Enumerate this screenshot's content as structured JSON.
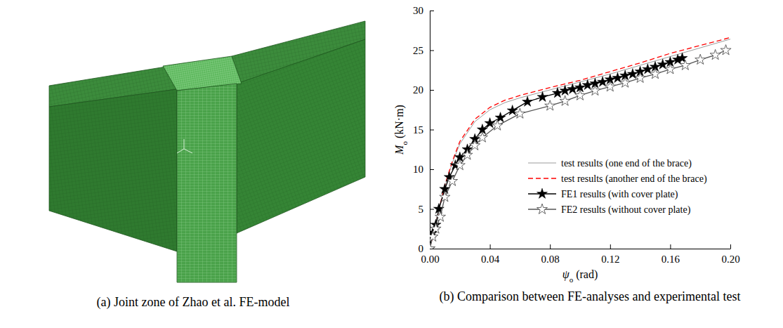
{
  "figure": {
    "panels": [
      {
        "caption": "(a) Joint zone of Zhao et al. FE-model"
      },
      {
        "caption": "(b) Comparison between FE-analyses and experimental test"
      }
    ]
  },
  "chart_data": {
    "type": "line",
    "xlabel": "ψ",
    "xlabel_subscript": "o",
    "xlabel_unit": "(rad)",
    "ylabel": "M",
    "ylabel_subscript": "o",
    "ylabel_unit": "(kN·m)",
    "xlim": [
      0,
      0.2
    ],
    "xticks": [
      {
        "value": 0,
        "label": "0.00"
      },
      {
        "value": 0.04,
        "label": "0.04"
      },
      {
        "value": 0.08,
        "label": "0.08"
      },
      {
        "value": 0.12,
        "label": "0.12"
      },
      {
        "value": 0.16,
        "label": "0.16"
      },
      {
        "value": 0.2,
        "label": "0.20"
      }
    ],
    "ylim": [
      0,
      30
    ],
    "yticks": [
      0,
      5,
      10,
      15,
      20,
      25,
      30
    ],
    "legend": "lower right",
    "series": [
      {
        "name": "test results (one end of the brace)",
        "color": "#9a9a9a",
        "line_style": "solid",
        "marker": "none",
        "x": [
          0,
          0.005,
          0.01,
          0.015,
          0.02,
          0.03,
          0.04,
          0.05,
          0.06,
          0.08,
          0.1,
          0.12,
          0.14,
          0.16,
          0.18,
          0.2
        ],
        "values": [
          0,
          3.9,
          7.8,
          10.8,
          13.2,
          16.0,
          17.5,
          18.4,
          19.0,
          20.0,
          21.0,
          22.0,
          23.1,
          24.2,
          25.3,
          26.4
        ]
      },
      {
        "name": "test results (another end of the brace)",
        "color": "#ff0000",
        "line_style": "dashed",
        "marker": "none",
        "x": [
          0,
          0.005,
          0.01,
          0.015,
          0.02,
          0.03,
          0.04,
          0.05,
          0.06,
          0.08,
          0.1,
          0.12,
          0.14,
          0.16,
          0.18,
          0.2
        ],
        "values": [
          0,
          4.0,
          8.0,
          11.0,
          13.5,
          16.3,
          17.8,
          18.7,
          19.3,
          20.3,
          21.2,
          22.3,
          23.4,
          24.6,
          25.6,
          26.6
        ]
      },
      {
        "name": "FE1 results (with cover plate)",
        "color": "#000000",
        "line_style": "solid",
        "marker": "filled-star",
        "x": [
          0,
          0.002,
          0.004,
          0.006,
          0.01,
          0.013,
          0.017,
          0.02,
          0.025,
          0.03,
          0.035,
          0.04,
          0.047,
          0.055,
          0.065,
          0.075,
          0.085,
          0.09,
          0.095,
          0.1,
          0.105,
          0.11,
          0.115,
          0.12,
          0.125,
          0.13,
          0.135,
          0.14,
          0.145,
          0.15,
          0.155,
          0.16,
          0.165,
          0.168
        ],
        "values": [
          0,
          2.0,
          3.0,
          5.0,
          7.5,
          9.0,
          10.5,
          11.5,
          12.5,
          13.8,
          15.0,
          15.8,
          16.5,
          17.4,
          18.5,
          19.1,
          19.6,
          19.9,
          20.1,
          20.3,
          20.6,
          20.8,
          21.0,
          21.3,
          21.5,
          21.8,
          22.0,
          22.3,
          22.6,
          22.9,
          23.2,
          23.5,
          23.8,
          24.0
        ]
      },
      {
        "name": "FE2 results (without cover plate)",
        "color": "#555555",
        "line_style": "solid",
        "marker": "open-star",
        "x": [
          0,
          0.002,
          0.004,
          0.007,
          0.01,
          0.015,
          0.02,
          0.025,
          0.03,
          0.035,
          0.045,
          0.06,
          0.08,
          0.09,
          0.1,
          0.11,
          0.12,
          0.13,
          0.14,
          0.15,
          0.16,
          0.17,
          0.18,
          0.19,
          0.197
        ],
        "values": [
          0,
          1.5,
          2.5,
          4.0,
          6.5,
          8.5,
          10.5,
          11.8,
          13.0,
          14.0,
          15.5,
          17.0,
          18.0,
          18.6,
          19.3,
          19.9,
          20.4,
          20.9,
          21.5,
          22.0,
          22.6,
          23.1,
          23.8,
          24.4,
          25.0
        ]
      }
    ]
  }
}
